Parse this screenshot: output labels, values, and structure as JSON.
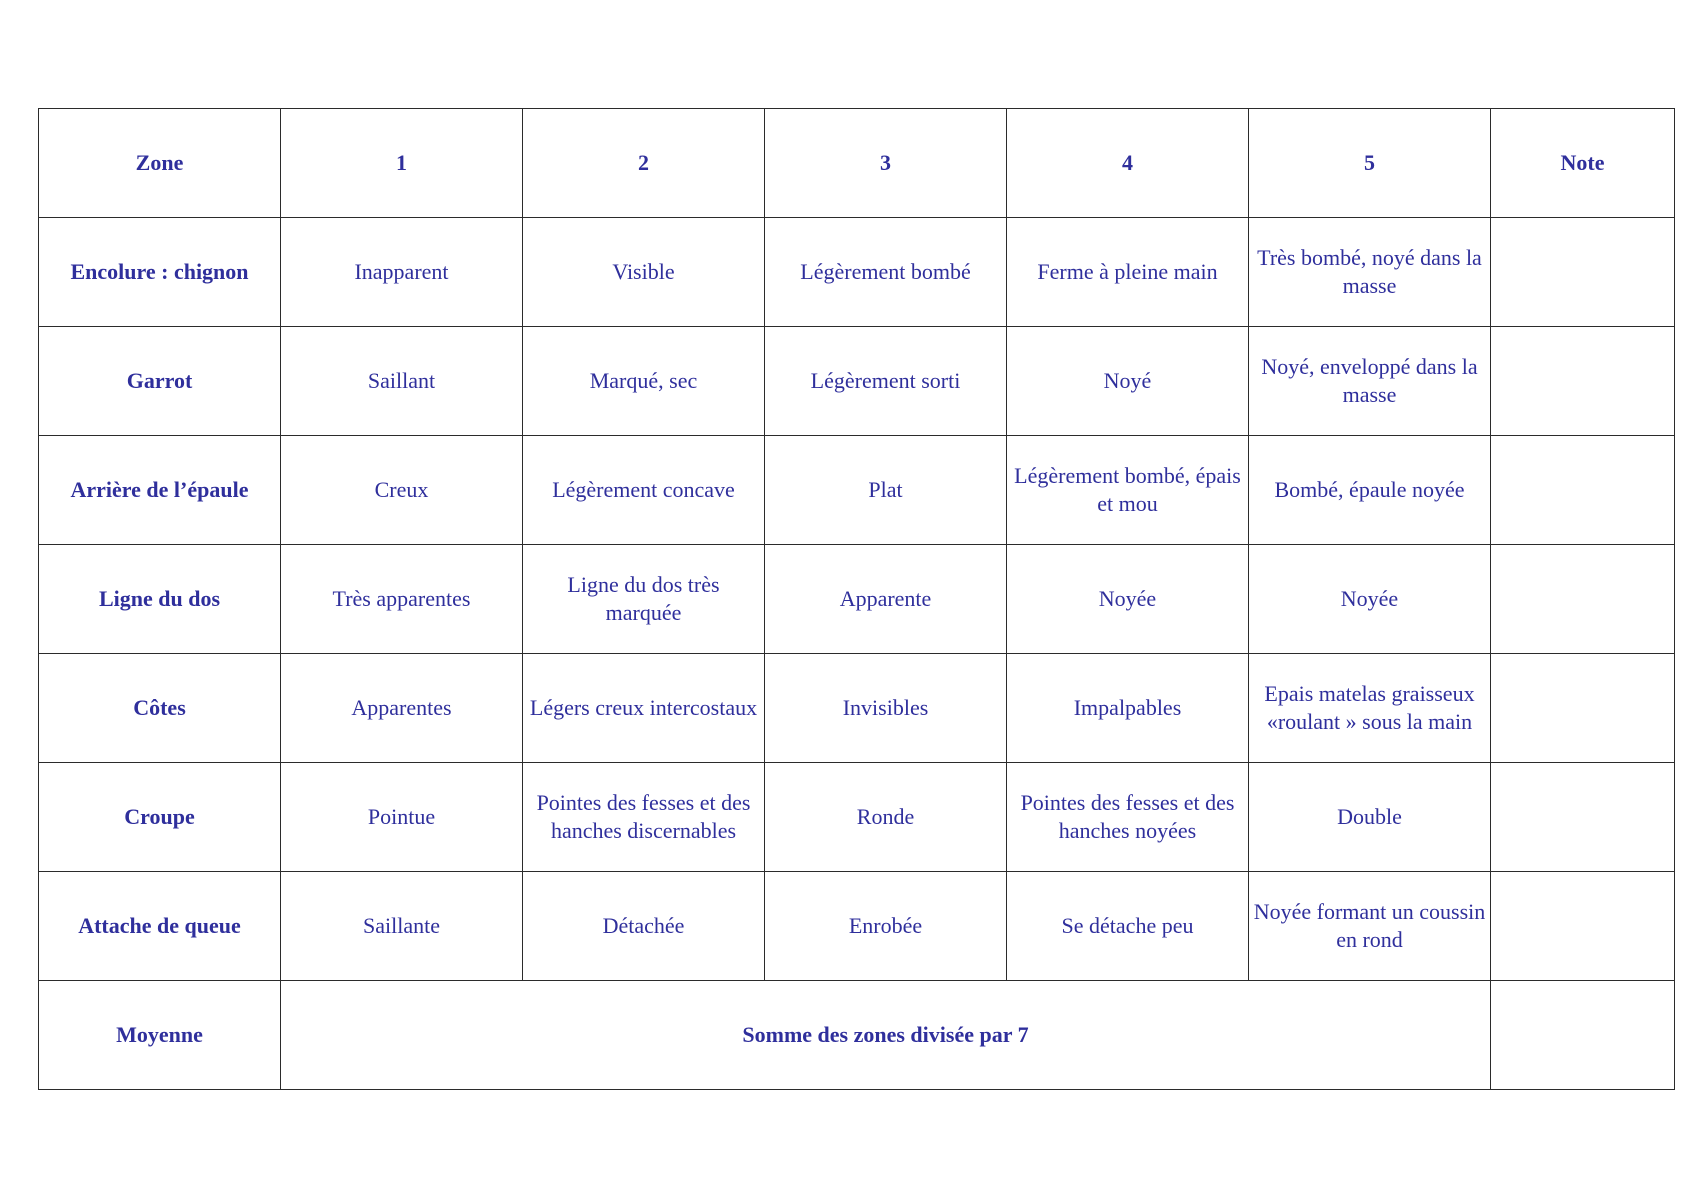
{
  "colors": {
    "zone_label": "#f5930f",
    "value_text": "#2f2f9c",
    "header_text": "#000000",
    "border": "#2b2b2b"
  },
  "header": {
    "zone": "Zone",
    "scores": [
      "1",
      "2",
      "3",
      "4",
      "5"
    ],
    "note": "Note"
  },
  "rows": [
    {
      "zone": "Encolure : chignon",
      "values": [
        "Inapparent",
        "Visible",
        "Légèrement bombé",
        "Ferme à pleine main",
        "Très bombé, noyé dans la masse"
      ],
      "note": ""
    },
    {
      "zone": "Garrot",
      "values": [
        "Saillant",
        "Marqué, sec",
        "Légèrement sorti",
        "Noyé",
        "Noyé, enveloppé dans la masse"
      ],
      "note": ""
    },
    {
      "zone": "Arrière de l’épaule",
      "values": [
        "Creux",
        "Légèrement concave",
        "Plat",
        "Légèrement bombé, épais et mou",
        "Bombé, épaule noyée"
      ],
      "note": ""
    },
    {
      "zone": "Ligne du dos",
      "values": [
        "Très apparentes",
        "Ligne du dos très marquée",
        "Apparente",
        "Noyée",
        "Noyée"
      ],
      "note": ""
    },
    {
      "zone": "Côtes",
      "values": [
        "Apparentes",
        "Légers creux intercostaux",
        "Invisibles",
        "Impalpables",
        "Epais matelas graisseux «roulant » sous la main"
      ],
      "note": ""
    },
    {
      "zone": "Croupe",
      "values": [
        "Pointue",
        "Pointes des fesses et des hanches discernables",
        "Ronde",
        "Pointes des fesses et des hanches noyées",
        "Double"
      ],
      "note": ""
    },
    {
      "zone": "Attache de queue",
      "values": [
        "Saillante",
        "Détachée",
        "Enrobée",
        "Se détache peu",
        "Noyée formant un coussin en rond"
      ],
      "note": ""
    }
  ],
  "footer": {
    "label": "Moyenne",
    "text": "Somme des zones divisée par 7",
    "note": ""
  }
}
